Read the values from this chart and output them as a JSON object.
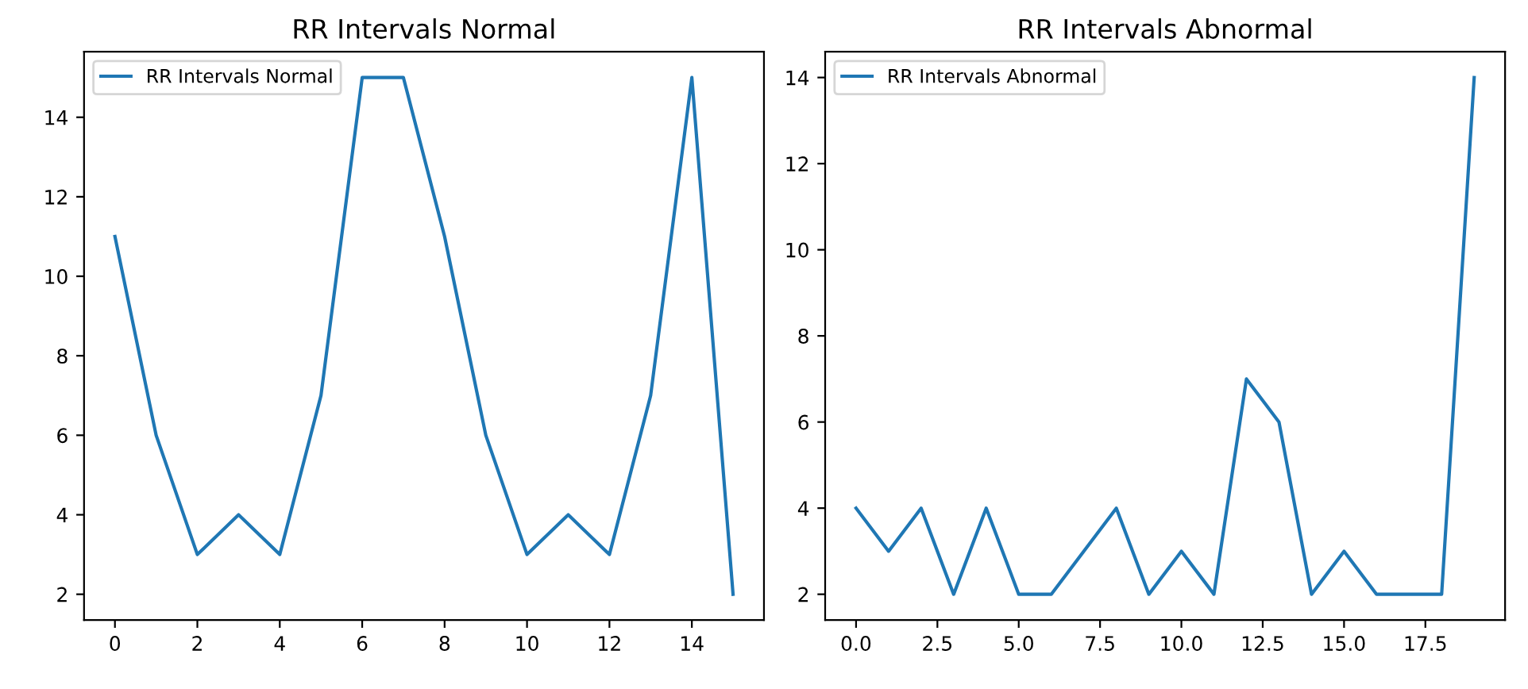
{
  "chart_data": [
    {
      "type": "line",
      "title": "RR Intervals Normal",
      "x": [
        0,
        1,
        2,
        3,
        4,
        5,
        6,
        7,
        8,
        9,
        10,
        11,
        12,
        13,
        14,
        15
      ],
      "series": [
        {
          "name": "RR Intervals Normal",
          "color": "#1f77b4",
          "values": [
            11,
            6,
            3,
            4,
            3,
            7,
            15,
            15,
            11,
            6,
            3,
            4,
            3,
            7,
            15,
            2
          ]
        }
      ],
      "xlim": [
        -0.75,
        15.75
      ],
      "xticks": [
        0,
        2,
        4,
        6,
        8,
        10,
        12,
        14
      ],
      "ylim": [
        1.35,
        15.65
      ],
      "yticks": [
        2,
        4,
        6,
        8,
        10,
        12,
        14
      ],
      "legend": "top left",
      "grid": false
    },
    {
      "type": "line",
      "title": "RR Intervals Abnormal",
      "x": [
        0,
        1,
        2,
        3,
        4,
        5,
        6,
        7,
        8,
        9,
        10,
        11,
        12,
        13,
        14,
        15,
        16,
        17,
        18,
        19
      ],
      "series": [
        {
          "name": "RR Intervals Abnormal",
          "color": "#1f77b4",
          "values": [
            4,
            3,
            4,
            2,
            4,
            2,
            2,
            3,
            4,
            2,
            3,
            2,
            7,
            6,
            2,
            3,
            2,
            2,
            2,
            14
          ]
        }
      ],
      "xlim": [
        -0.95,
        19.95
      ],
      "xticks": [
        {
          "value": 0,
          "label": "0.0"
        },
        {
          "value": 2.5,
          "label": "2.5"
        },
        {
          "value": 5,
          "label": "5.0"
        },
        {
          "value": 7.5,
          "label": "7.5"
        },
        {
          "value": 10,
          "label": "10.0"
        },
        {
          "value": 12.5,
          "label": "12.5"
        },
        {
          "value": 15,
          "label": "15.0"
        },
        {
          "value": 17.5,
          "label": "17.5"
        }
      ],
      "ylim": [
        1.4,
        14.6
      ],
      "yticks": [
        2,
        4,
        6,
        8,
        10,
        12,
        14
      ],
      "legend": "top left",
      "grid": false
    }
  ]
}
